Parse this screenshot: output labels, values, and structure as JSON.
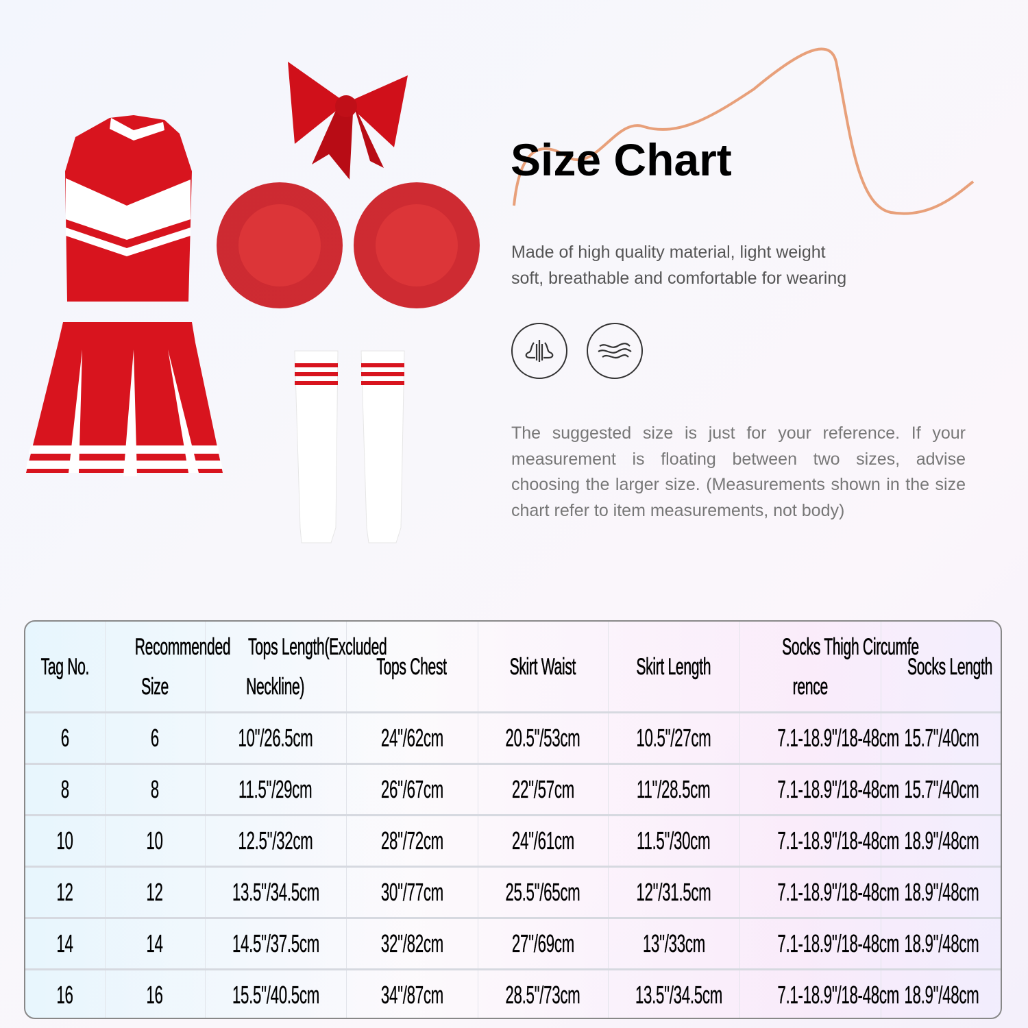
{
  "heading": "Size Chart",
  "description": "Made of high quality material, light weight soft, breathable and comfortable for wearing",
  "description_lines": [
    "Made of high quality material, light weight",
    "soft, breathable and comfortable for wearing"
  ],
  "feature_icons": [
    "breathable-icon",
    "soft-wave-icon"
  ],
  "note": "The suggested size is just for your reference. If your measurement is floating between two sizes, advise choosing the larger size. (Measurements shown in the size chart refer to item measurements, not body)",
  "colors": {
    "product_red": "#d8141e",
    "accent_curve": "#e8a07a"
  },
  "table": {
    "headers": [
      [
        "Tag No."
      ],
      [
        "Recommended",
        "Size"
      ],
      [
        "Tops Length(Excluded",
        "Neckline)"
      ],
      [
        "Tops Chest"
      ],
      [
        "Skirt Waist"
      ],
      [
        "Skirt Length"
      ],
      [
        "Socks Thigh Circumfe",
        "rence"
      ],
      [
        "Socks Length"
      ]
    ],
    "rows": [
      [
        "6",
        "6",
        "10\"/26.5cm",
        "24\"/62cm",
        "20.5\"/53cm",
        "10.5\"/27cm",
        "7.1-18.9\"/18-48cm",
        "15.7\"/40cm"
      ],
      [
        "8",
        "8",
        "11.5\"/29cm",
        "26\"/67cm",
        "22\"/57cm",
        "11\"/28.5cm",
        "7.1-18.9\"/18-48cm",
        "15.7\"/40cm"
      ],
      [
        "10",
        "10",
        "12.5\"/32cm",
        "28\"/72cm",
        "24\"/61cm",
        "11.5\"/30cm",
        "7.1-18.9\"/18-48cm",
        "18.9\"/48cm"
      ],
      [
        "12",
        "12",
        "13.5\"/34.5cm",
        "30\"/77cm",
        "25.5\"/65cm",
        "12\"/31.5cm",
        "7.1-18.9\"/18-48cm",
        "18.9\"/48cm"
      ],
      [
        "14",
        "14",
        "14.5\"/37.5cm",
        "32\"/82cm",
        "27\"/69cm",
        "13\"/33cm",
        "7.1-18.9\"/18-48cm",
        "18.9\"/48cm"
      ],
      [
        "16",
        "16",
        "15.5\"/40.5cm",
        "34\"/87cm",
        "28.5\"/73cm",
        "13.5\"/34.5cm",
        "7.1-18.9\"/18-48cm",
        "18.9\"/48cm"
      ]
    ]
  }
}
